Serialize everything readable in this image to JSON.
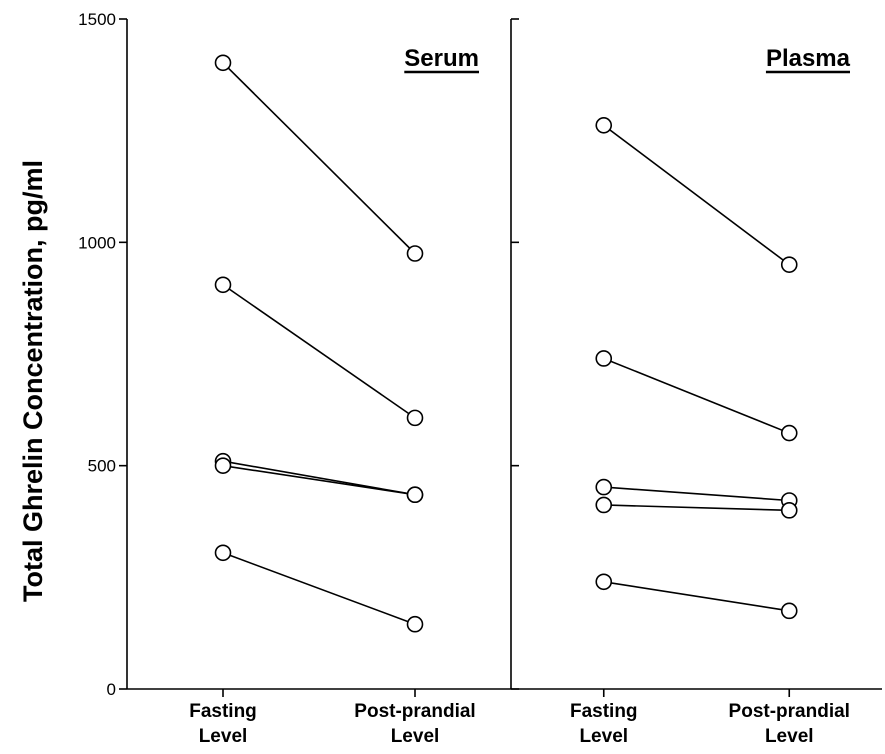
{
  "chart_data": {
    "type": "line",
    "ylabel": "Total Ghrelin Concentration, pg/ml",
    "ylim": [
      0,
      1500
    ],
    "yticks": [
      "0",
      "500",
      "1000",
      "1500"
    ],
    "categories": [
      [
        "Fasting",
        "Level"
      ],
      [
        "Post-prandial",
        "Level"
      ]
    ],
    "panels": [
      {
        "title": "Serum",
        "series": [
          {
            "values": [
              1402,
              975
            ]
          },
          {
            "values": [
              905,
              607
            ]
          },
          {
            "values": [
              510,
              435
            ]
          },
          {
            "values": [
              500,
              435
            ]
          },
          {
            "values": [
              305,
              145
            ]
          }
        ]
      },
      {
        "title": "Plasma",
        "series": [
          {
            "values": [
              1262,
              950
            ]
          },
          {
            "values": [
              740,
              573
            ]
          },
          {
            "values": [
              452,
              422
            ]
          },
          {
            "values": [
              412,
              400
            ]
          },
          {
            "values": [
              240,
              175
            ]
          }
        ]
      }
    ],
    "grid": false,
    "legend": "none"
  }
}
